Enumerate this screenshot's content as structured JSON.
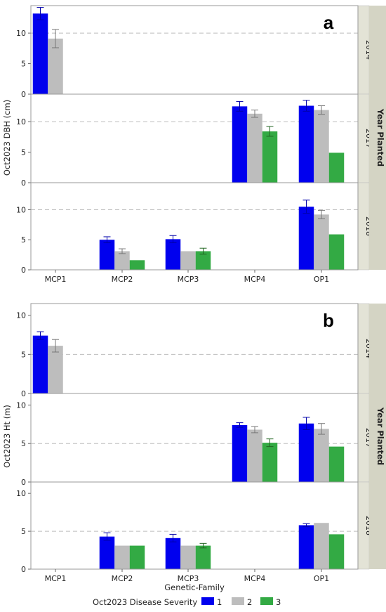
{
  "colors": {
    "1": "#0000EE",
    "2": "#BDBDBD",
    "3": "#33AA44",
    "strip": "#E3E3D6",
    "strip_dark": "#D4D4C4"
  },
  "legend": {
    "title": "Oct2023 Disease Severity",
    "items": [
      "1",
      "2",
      "3"
    ]
  },
  "year_strip_title": "Year Planted",
  "chart_data": [
    {
      "type": "bar",
      "panel_letter": "a",
      "ylabel": "Oct2023 DBH (cm)",
      "xlabel": "",
      "categories": [
        "MCP1",
        "MCP2",
        "MCP3",
        "MCP4",
        "OP1"
      ],
      "ylim": [
        0,
        14.5
      ],
      "yticks": [
        0,
        5,
        10
      ],
      "grid_dashed_at": 10,
      "facets": [
        {
          "label": "2014",
          "series": [
            {
              "name": "1",
              "values": [
                13.2,
                null,
                null,
                null,
                null
              ],
              "errors": [
                1.0,
                null,
                null,
                null,
                null
              ]
            },
            {
              "name": "2",
              "values": [
                9.1,
                null,
                null,
                null,
                null
              ],
              "errors": [
                1.5,
                null,
                null,
                null,
                null
              ]
            },
            {
              "name": "3",
              "values": [
                null,
                null,
                null,
                null,
                null
              ],
              "errors": [
                null,
                null,
                null,
                null,
                null
              ]
            }
          ]
        },
        {
          "label": "2017",
          "series": [
            {
              "name": "1",
              "values": [
                null,
                null,
                null,
                12.5,
                12.6
              ],
              "errors": [
                null,
                null,
                null,
                0.8,
                0.9
              ]
            },
            {
              "name": "2",
              "values": [
                null,
                null,
                null,
                11.3,
                11.9
              ],
              "errors": [
                null,
                null,
                null,
                0.6,
                0.7
              ]
            },
            {
              "name": "3",
              "values": [
                null,
                null,
                null,
                8.4,
                4.9
              ],
              "errors": [
                null,
                null,
                null,
                0.8,
                0
              ]
            }
          ]
        },
        {
          "label": "2018",
          "series": [
            {
              "name": "1",
              "values": [
                null,
                5.0,
                5.1,
                null,
                10.5
              ],
              "errors": [
                null,
                0.5,
                0.6,
                null,
                1.1
              ]
            },
            {
              "name": "2",
              "values": [
                null,
                3.1,
                3.1,
                null,
                9.2
              ],
              "errors": [
                null,
                0.4,
                0,
                null,
                0.7
              ]
            },
            {
              "name": "3",
              "values": [
                null,
                1.6,
                3.1,
                null,
                5.9
              ],
              "errors": [
                null,
                0,
                0.5,
                null,
                0
              ]
            }
          ]
        }
      ]
    },
    {
      "type": "bar",
      "panel_letter": "b",
      "ylabel": "Oct2023 Ht (m)",
      "xlabel": "Genetic-Family",
      "categories": [
        "MCP1",
        "MCP2",
        "MCP3",
        "MCP4",
        "OP1"
      ],
      "ylim": [
        0,
        11.5
      ],
      "yticks": [
        0,
        5,
        10
      ],
      "grid_dashed_at": 5,
      "facets": [
        {
          "label": "2014",
          "series": [
            {
              "name": "1",
              "values": [
                7.4,
                null,
                null,
                null,
                null
              ],
              "errors": [
                0.5,
                null,
                null,
                null,
                null
              ]
            },
            {
              "name": "2",
              "values": [
                6.1,
                null,
                null,
                null,
                null
              ],
              "errors": [
                0.8,
                null,
                null,
                null,
                null
              ]
            },
            {
              "name": "3",
              "values": [
                null,
                null,
                null,
                null,
                null
              ],
              "errors": [
                null,
                null,
                null,
                null,
                null
              ]
            }
          ]
        },
        {
          "label": "2017",
          "series": [
            {
              "name": "1",
              "values": [
                null,
                null,
                null,
                7.4,
                7.6
              ],
              "errors": [
                null,
                null,
                null,
                0.3,
                0.8
              ]
            },
            {
              "name": "2",
              "values": [
                null,
                null,
                null,
                6.8,
                6.9
              ],
              "errors": [
                null,
                null,
                null,
                0.4,
                0.7
              ]
            },
            {
              "name": "3",
              "values": [
                null,
                null,
                null,
                5.1,
                4.6
              ],
              "errors": [
                null,
                null,
                null,
                0.5,
                0
              ]
            }
          ]
        },
        {
          "label": "2018",
          "series": [
            {
              "name": "1",
              "values": [
                null,
                4.3,
                4.1,
                null,
                5.8
              ],
              "errors": [
                null,
                0.5,
                0.5,
                null,
                0.2
              ]
            },
            {
              "name": "2",
              "values": [
                null,
                3.1,
                3.1,
                null,
                6.1
              ],
              "errors": [
                null,
                0,
                0,
                null,
                0
              ]
            },
            {
              "name": "3",
              "values": [
                null,
                3.1,
                3.1,
                null,
                4.6
              ],
              "errors": [
                null,
                0,
                0.3,
                null,
                0
              ]
            }
          ]
        }
      ]
    }
  ]
}
